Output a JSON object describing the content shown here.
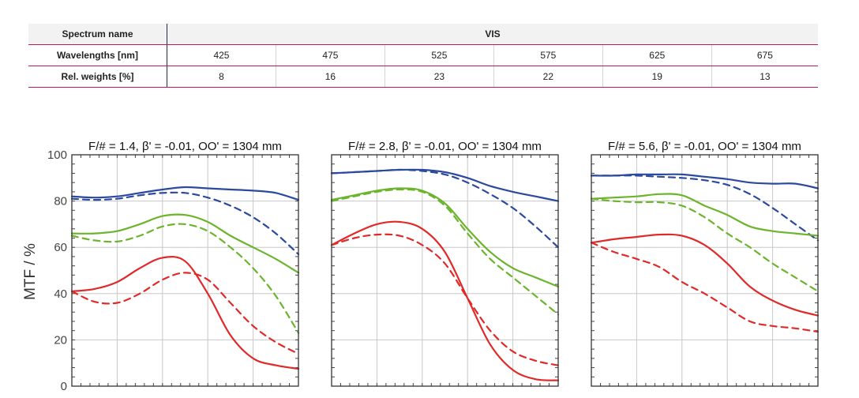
{
  "spectrum_table": {
    "spectrum_label": "Spectrum name",
    "spectrum_value": "VIS",
    "wavelengths_label": "Wavelengths [nm]",
    "wavelengths": [
      "425",
      "475",
      "525",
      "575",
      "625",
      "675"
    ],
    "weights_label": "Rel. weights [%]",
    "weights": [
      "8",
      "16",
      "23",
      "22",
      "19",
      "13"
    ]
  },
  "colors": {
    "blue": "#2b4a9e",
    "green": "#6cb42c",
    "red": "#e02a2a",
    "table_rule": "#c21a4e"
  },
  "chart_data": [
    {
      "type": "line",
      "title": "F/# = 1.4, β' = -0.01, OO' = 1304 mm",
      "ylabel": "MTF / %",
      "ylim": [
        0,
        100
      ],
      "yticks": [
        "0",
        "20",
        "40",
        "60",
        "80",
        "100"
      ],
      "xlim": [
        0,
        1
      ],
      "grid": true,
      "x": [
        0,
        0.1,
        0.2,
        0.3,
        0.4,
        0.5,
        0.6,
        0.7,
        0.8,
        0.9,
        1.0
      ],
      "series": [
        {
          "color": "blue",
          "style": "solid",
          "values": [
            82,
            81.5,
            82,
            83.5,
            85,
            86,
            85.5,
            85,
            84.5,
            83.5,
            80.5
          ]
        },
        {
          "color": "blue",
          "style": "dashed",
          "values": [
            81,
            80.5,
            81,
            82.5,
            83.5,
            83.5,
            81.5,
            78,
            73,
            66,
            57
          ]
        },
        {
          "color": "green",
          "style": "solid",
          "values": [
            66,
            66,
            67,
            70,
            73.5,
            74,
            71,
            65,
            60,
            55,
            49
          ]
        },
        {
          "color": "green",
          "style": "dashed",
          "values": [
            65,
            63,
            62.5,
            65,
            69,
            70,
            67,
            60,
            51,
            39,
            23
          ]
        },
        {
          "color": "red",
          "style": "solid",
          "values": [
            41,
            42,
            45,
            51,
            55.5,
            54,
            40,
            22,
            12,
            9,
            7.5
          ]
        },
        {
          "color": "red",
          "style": "dashed",
          "values": [
            41,
            36.5,
            36,
            40,
            46,
            49,
            46,
            36,
            26,
            19,
            14
          ]
        }
      ]
    },
    {
      "type": "line",
      "title": "F/# = 2.8, β' = -0.01, OO' = 1304 mm",
      "ylim": [
        0,
        100
      ],
      "xlim": [
        0,
        1
      ],
      "grid": true,
      "x": [
        0,
        0.1,
        0.2,
        0.3,
        0.4,
        0.5,
        0.6,
        0.7,
        0.8,
        0.9,
        1.0
      ],
      "series": [
        {
          "color": "blue",
          "style": "solid",
          "values": [
            92,
            92.5,
            93,
            93.5,
            93.5,
            92.5,
            90,
            86.5,
            84,
            82,
            80
          ]
        },
        {
          "color": "blue",
          "style": "dashed",
          "values": [
            92,
            92.5,
            93,
            93.5,
            93,
            91.5,
            88,
            83,
            77,
            69,
            60
          ]
        },
        {
          "color": "green",
          "style": "solid",
          "values": [
            80.5,
            82.5,
            84.5,
            85.5,
            84.5,
            79,
            68,
            58,
            51,
            47,
            43
          ]
        },
        {
          "color": "green",
          "style": "dashed",
          "values": [
            80,
            82,
            84,
            85,
            84,
            78,
            66,
            55,
            47,
            39,
            31
          ]
        },
        {
          "color": "red",
          "style": "solid",
          "values": [
            61,
            66,
            70,
            71,
            68,
            58,
            38,
            18,
            7,
            3,
            2.5
          ]
        },
        {
          "color": "red",
          "style": "dashed",
          "values": [
            61,
            64,
            65.5,
            65,
            61,
            53,
            38,
            24,
            15,
            11,
            9
          ]
        }
      ]
    },
    {
      "type": "line",
      "title": "F/# = 5.6, β' = -0.01, OO' = 1304 mm",
      "ylim": [
        0,
        100
      ],
      "xlim": [
        0,
        1
      ],
      "grid": true,
      "x": [
        0,
        0.1,
        0.2,
        0.3,
        0.4,
        0.5,
        0.6,
        0.7,
        0.8,
        0.9,
        1.0
      ],
      "series": [
        {
          "color": "blue",
          "style": "solid",
          "values": [
            91,
            91,
            91.5,
            91.5,
            91.5,
            90.5,
            89.5,
            88,
            87.5,
            87.5,
            85.5
          ]
        },
        {
          "color": "blue",
          "style": "dashed",
          "values": [
            91,
            91,
            91,
            90.5,
            90,
            89,
            87,
            83,
            77,
            70,
            63
          ]
        },
        {
          "color": "green",
          "style": "solid",
          "values": [
            81,
            81.5,
            82,
            83,
            82.5,
            78,
            74,
            69,
            67,
            66,
            65
          ]
        },
        {
          "color": "green",
          "style": "dashed",
          "values": [
            81,
            80,
            79.5,
            79.5,
            78,
            73,
            66,
            60,
            53,
            47,
            41
          ]
        },
        {
          "color": "red",
          "style": "solid",
          "values": [
            62,
            63.5,
            64.5,
            65.5,
            65,
            61,
            53,
            43,
            37,
            33,
            30.5
          ]
        },
        {
          "color": "red",
          "style": "dashed",
          "values": [
            62,
            58,
            55,
            51.5,
            45,
            40,
            34,
            28,
            26,
            25,
            23.5
          ]
        }
      ]
    }
  ]
}
